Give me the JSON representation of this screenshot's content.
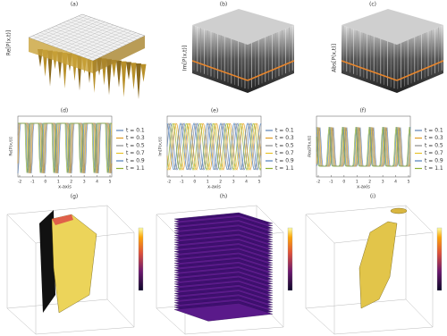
{
  "panels": [
    {
      "label": "(a)",
      "ylabel": "Re[P(x,t)]"
    },
    {
      "label": "(b)",
      "ylabel": "Im[P(x,t)]"
    },
    {
      "label": "(c)",
      "ylabel": "Abs[P(x,t)]"
    },
    {
      "label": "(d)",
      "ylabel": "Re[P(x,t)]",
      "xlabel": "x-axis",
      "xticks": [
        "-2",
        "-1",
        "0",
        "1",
        "2",
        "3",
        "4",
        "5"
      ],
      "legend": [
        "t = 0.1",
        "t = 0.3",
        "t = 0.5",
        "t = 0.7",
        "t = 0.9",
        "t = 1.1"
      ]
    },
    {
      "label": "(e)",
      "ylabel": "Im[P(x,t)]",
      "xlabel": "x-axis",
      "xticks": [
        "-2",
        "-1",
        "0",
        "1",
        "2",
        "3",
        "4",
        "5"
      ],
      "legend": [
        "t = 0.1",
        "t = 0.3",
        "t = 0.5",
        "t = 0.7",
        "t = 0.9",
        "t = 1.1"
      ]
    },
    {
      "label": "(f)",
      "ylabel": "Abs[P(x,t)]",
      "xlabel": "x-axis",
      "xticks": [
        "-2",
        "-1",
        "0",
        "1",
        "2",
        "3",
        "4",
        "5"
      ],
      "legend": [
        "t = 0.1",
        "t = 0.3",
        "t = 0.5",
        "t = 0.7",
        "t = 0.9",
        "t = 1.1"
      ]
    },
    {
      "label": "(g)"
    },
    {
      "label": "(h)"
    },
    {
      "label": "(i)"
    }
  ]
}
